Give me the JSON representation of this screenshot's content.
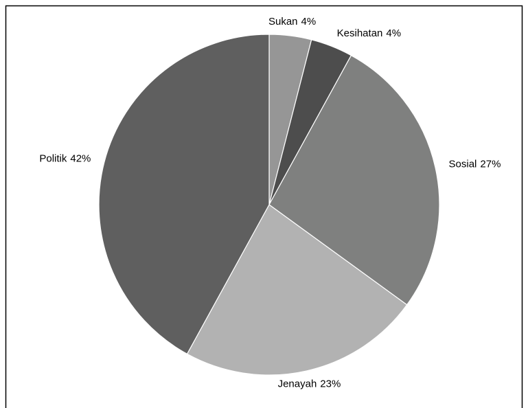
{
  "chart_data": {
    "type": "pie",
    "categories": [
      "Sukan",
      "Kesihatan",
      "Sosial",
      "Jenayah",
      "Politik"
    ],
    "values": [
      4,
      4,
      27,
      23,
      42
    ],
    "value_labels": [
      "4%",
      "4%",
      "27%",
      "23%",
      "42%"
    ],
    "colors": [
      "#969696",
      "#4d4d4d",
      "#7f807f",
      "#b2b2b2",
      "#5f5f5f"
    ]
  }
}
